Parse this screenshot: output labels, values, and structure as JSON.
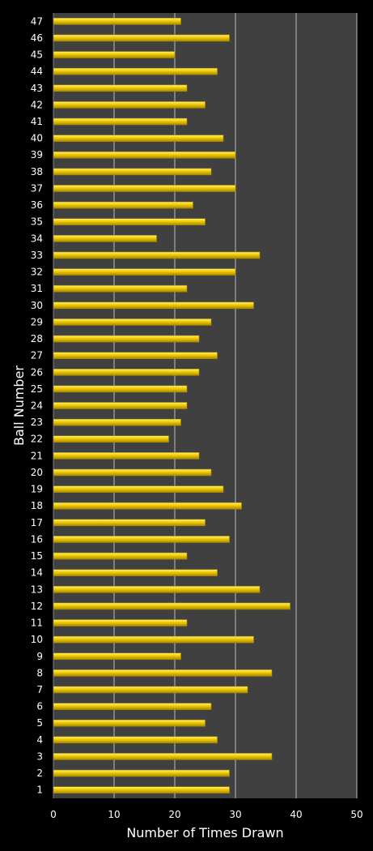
{
  "chart_data": {
    "type": "bar",
    "orientation": "horizontal",
    "title": "",
    "xlabel": "Number of Times Drawn",
    "ylabel": "Ball Number",
    "xlim": [
      0,
      50
    ],
    "xticks": [
      0,
      10,
      20,
      30,
      40,
      50
    ],
    "grid": true,
    "legend": "none",
    "categories": [
      "1",
      "2",
      "3",
      "4",
      "5",
      "6",
      "7",
      "8",
      "9",
      "10",
      "11",
      "12",
      "13",
      "14",
      "15",
      "16",
      "17",
      "18",
      "19",
      "20",
      "21",
      "22",
      "23",
      "24",
      "25",
      "26",
      "27",
      "28",
      "29",
      "30",
      "31",
      "32",
      "33",
      "34",
      "35",
      "36",
      "37",
      "38",
      "39",
      "40",
      "41",
      "42",
      "43",
      "44",
      "45",
      "46",
      "47"
    ],
    "values": [
      29,
      29,
      36,
      27,
      25,
      26,
      32,
      36,
      21,
      33,
      22,
      39,
      34,
      27,
      22,
      29,
      25,
      31,
      28,
      26,
      24,
      19,
      21,
      22,
      22,
      24,
      27,
      24,
      26,
      33,
      22,
      30,
      34,
      17,
      25,
      23,
      30,
      26,
      30,
      28,
      22,
      25,
      22,
      27,
      20,
      29,
      21
    ]
  },
  "colors": {
    "background": "#000000",
    "plot_area": "#404040",
    "gridline": "#bdbdbd",
    "bar_fill": "#f0c800",
    "bar_highlight": "#fff27a",
    "bar_shadow": "#a88a00",
    "text": "#ffffff"
  }
}
